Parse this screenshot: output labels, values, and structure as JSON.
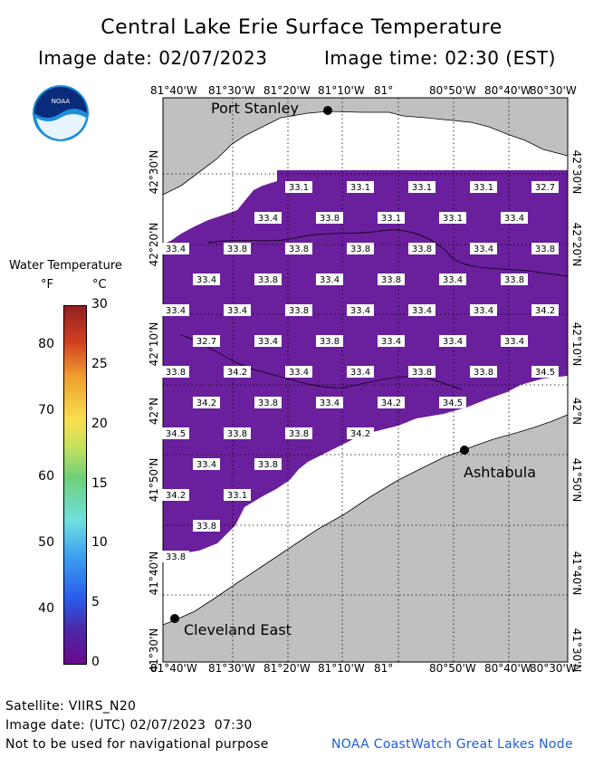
{
  "title": "Central Lake Erie Surface Temperature",
  "image_date": "Image date: 02/07/2023",
  "image_time": "Image time: 02:30 (EST)",
  "logo_text": "NOAA",
  "lon_ticks": [
    "81°40'W",
    "81°30'W",
    "81°20'W",
    "81°10'W",
    "81°",
    "80°50'W",
    "80°40'W",
    "80°30'W"
  ],
  "lat_ticks": [
    "41°30'N",
    "41°40'N",
    "41°50'N",
    "42°N",
    "42°10'N",
    "42°20'N",
    "42°30'N"
  ],
  "places": [
    "Port Stanley",
    "Ashtabula",
    "Cleveland East"
  ],
  "legend": {
    "title": "Water Temperature",
    "unit_f": "°F",
    "unit_c": "°C",
    "f_ticks": [
      "80",
      "70",
      "60",
      "50",
      "40"
    ],
    "c_ticks": [
      "30",
      "25",
      "20",
      "15",
      "10",
      "5",
      "0"
    ],
    "c_range": [
      0,
      30
    ]
  },
  "temperatures": {
    "rows": [
      [
        "33.1",
        "33.1",
        "33.1",
        "33.1",
        "32.7"
      ],
      [
        "33.4",
        "33.8",
        "33.1",
        "33.1",
        "33.4"
      ],
      [
        "33.4",
        "33.8",
        "33.8",
        "33.8",
        "33.8",
        "33.4",
        "33.8"
      ],
      [
        "33.4",
        "33.8",
        "33.4",
        "33.8",
        "33.4",
        "33.8"
      ],
      [
        "33.4",
        "33.4",
        "33.8",
        "33.4",
        "33.4",
        "33.4",
        "34.2"
      ],
      [
        "32.7",
        "33.4",
        "33.8",
        "33.4",
        "33.4",
        "33.4"
      ],
      [
        "33.8",
        "34.2",
        "33.4",
        "33.4",
        "33.8",
        "33.8",
        "34.5"
      ],
      [
        "34.2",
        "33.8",
        "33.4",
        "34.2",
        "34.5"
      ],
      [
        "34.5",
        "33.8",
        "33.8",
        "34.2"
      ],
      [
        "33.4",
        "33.8"
      ],
      [
        "34.2",
        "33.1"
      ],
      [
        "33.8"
      ],
      [
        "33.8"
      ]
    ]
  },
  "colors": {
    "land": "#c0c0c0",
    "water": "#6a1f9c",
    "ice_or_cloud": "#ffffff",
    "credit": "#1f5fd6"
  },
  "footer": {
    "satellite": "Satellite: VIIRS_N20",
    "utc_date": "Image date: (UTC) 02/07/2023  07:30",
    "disclaimer": "Not to be used for navigational purpose",
    "credit": "NOAA CoastWatch Great Lakes Node"
  }
}
